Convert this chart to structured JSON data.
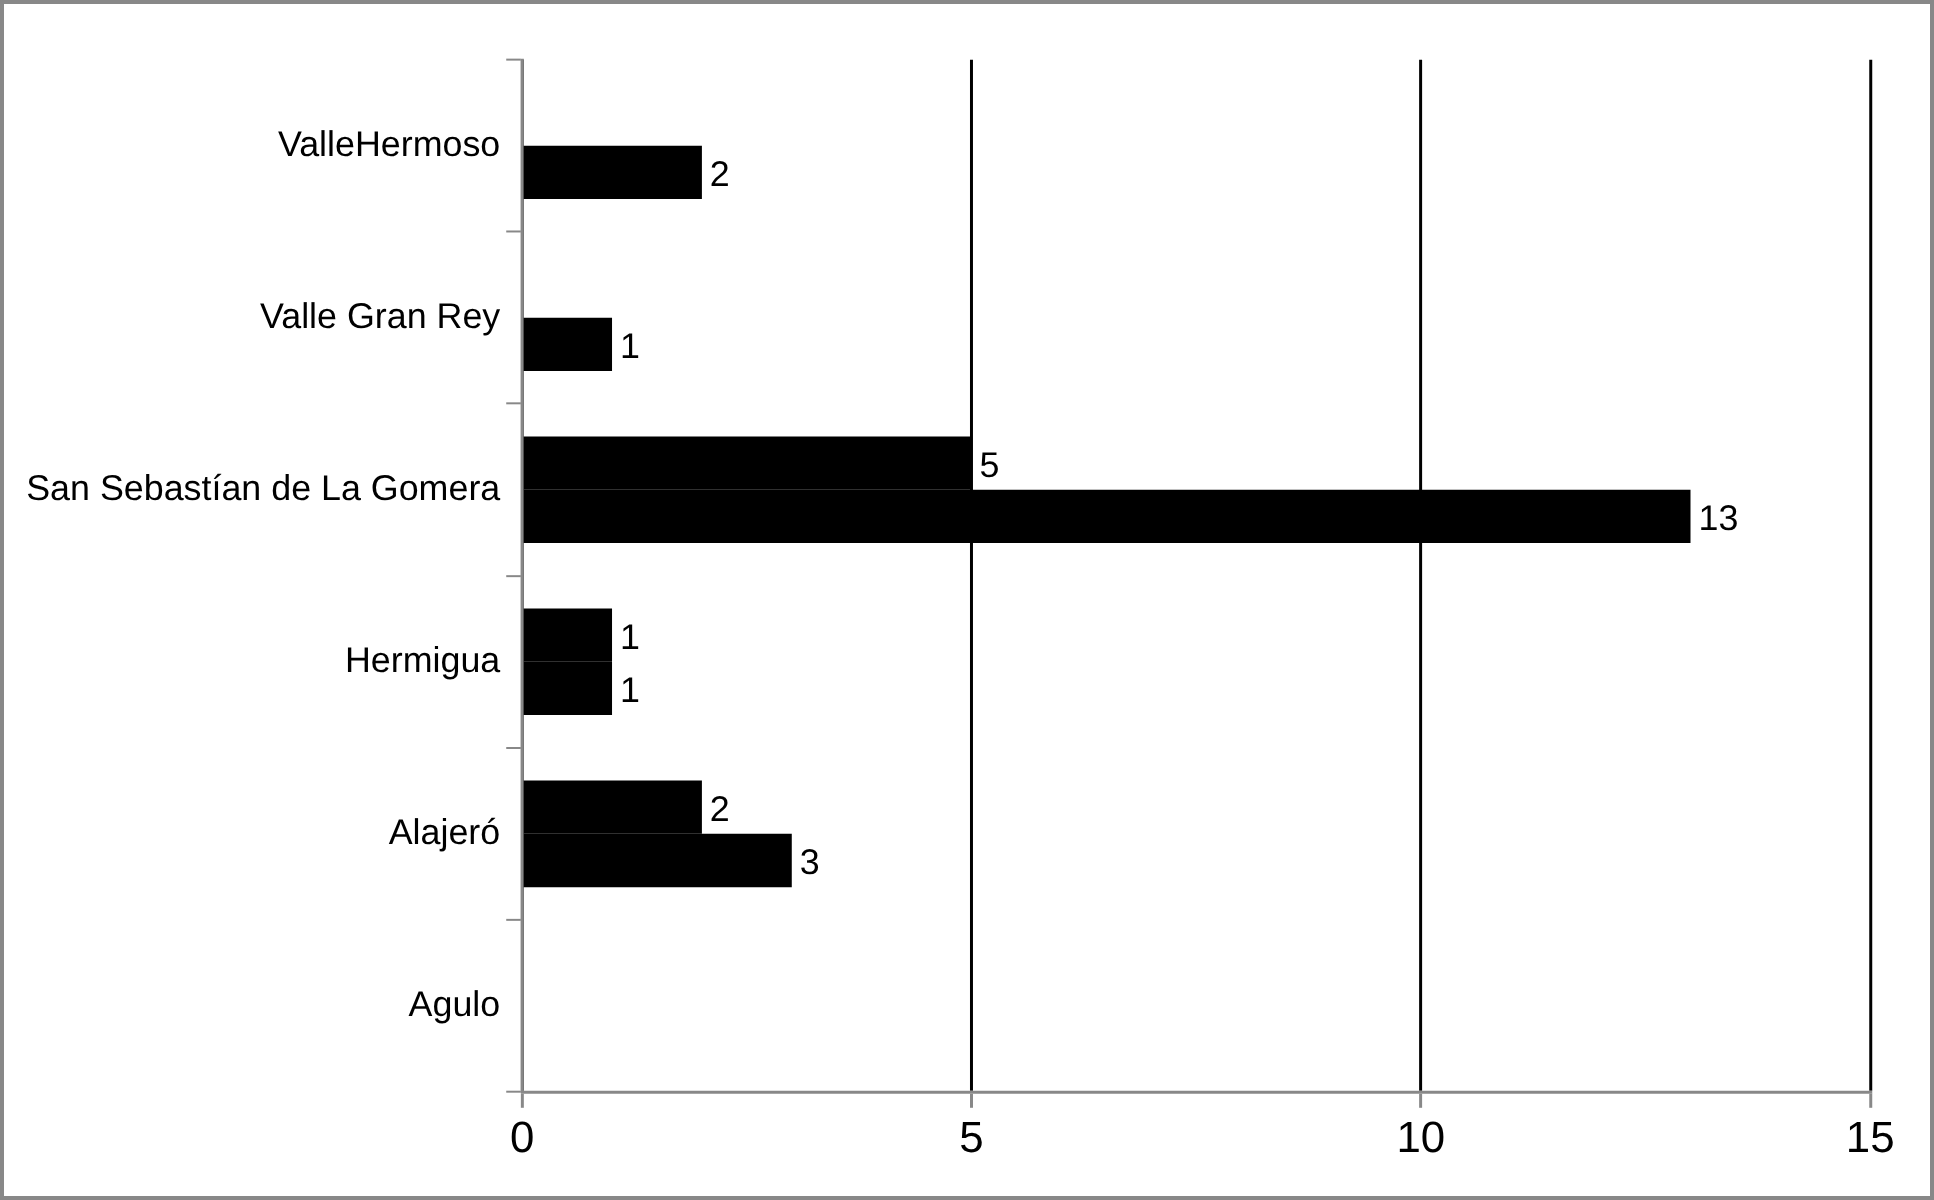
{
  "chart_data": {
    "type": "bar",
    "orientation": "horizontal",
    "categories": [
      "ValleHermoso",
      "Valle Gran Rey",
      "San Sebastían de La Gomera",
      "Hermigua",
      "Alajeró",
      "Agulo"
    ],
    "series": [
      {
        "color": "#000000",
        "values": [
          null,
          null,
          5,
          1,
          2,
          null
        ]
      },
      {
        "color": "#000000",
        "values": [
          2,
          1,
          13,
          1,
          3,
          null
        ]
      }
    ],
    "xlim": [
      0,
      15
    ],
    "xticks": [
      0,
      5,
      10,
      15
    ],
    "grid": "x",
    "data_labels": true,
    "legend": false
  }
}
